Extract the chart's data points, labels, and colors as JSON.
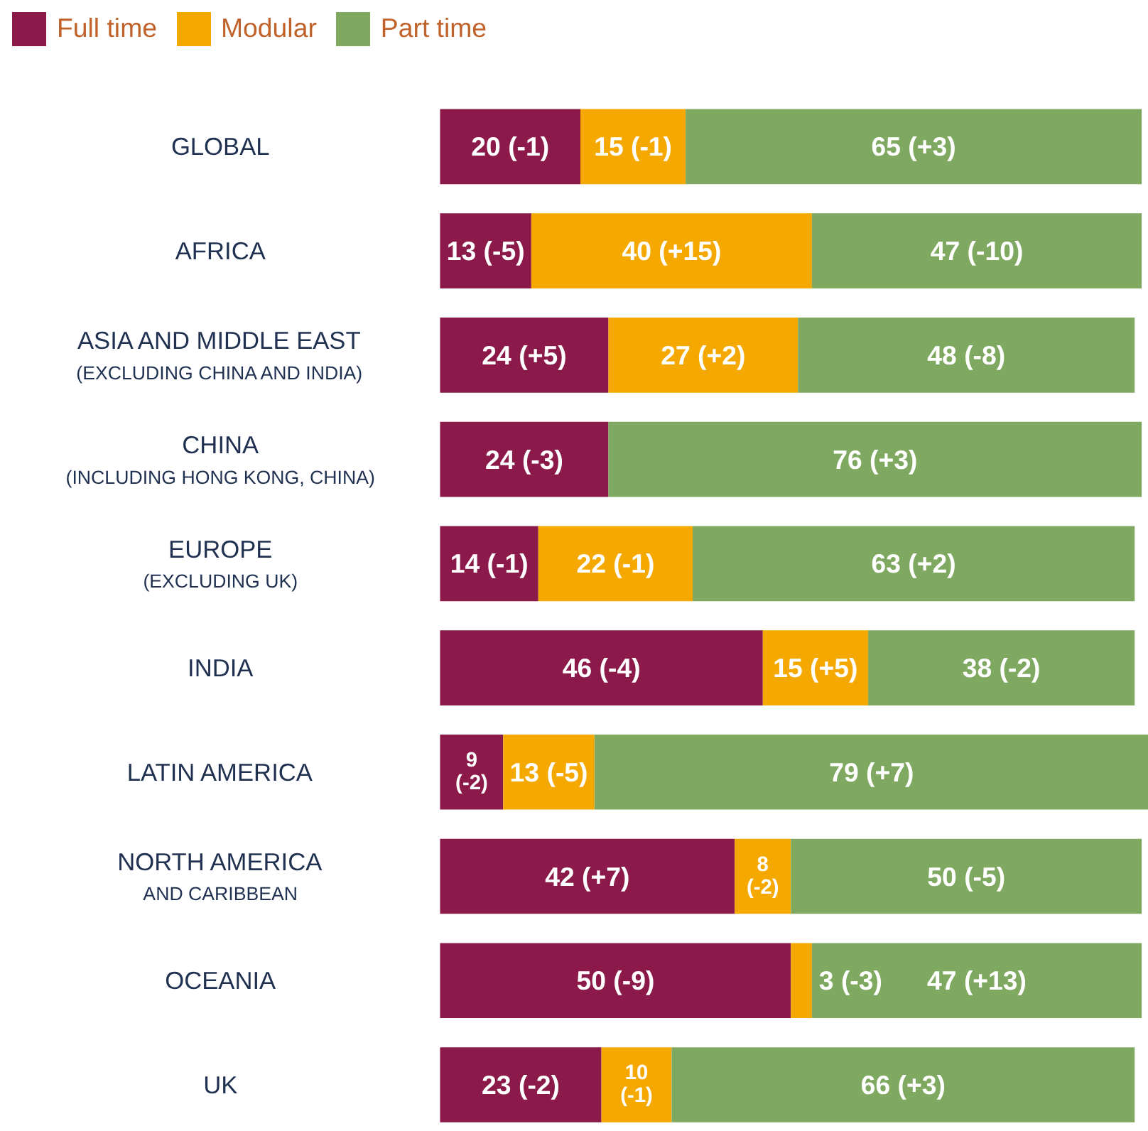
{
  "chart_data": {
    "type": "bar",
    "orientation": "horizontal",
    "stacked": true,
    "legend": "top left",
    "grid": false,
    "xlim": [
      0,
      101
    ],
    "categories": [
      "GLOBAL",
      "AFRICA",
      "ASIA AND MIDDLE EAST\n(EXCLUDING CHINA AND INDIA)",
      "CHINA\n(INCLUDING HONG KONG, CHINA)",
      "EUROPE\n(EXCLUDING UK)",
      "INDIA",
      "LATIN AMERICA",
      "NORTH AMERICA\nAND CARIBBEAN",
      "OCEANIA",
      "UK"
    ],
    "series": [
      {
        "name": "Full time",
        "color": "#8b1a4a",
        "values": [
          20,
          13,
          24,
          24,
          14,
          46,
          9,
          42,
          50,
          23
        ],
        "value_labels": [
          "20 (-1)",
          "13 (-5)",
          "24 (+5)",
          "24 (-3)",
          "14 (-1)",
          "46 (-4)",
          "9\n(-2)",
          "42 (+7)",
          "50 (-9)",
          "23 (-2)"
        ]
      },
      {
        "name": "Modular",
        "color": "#f5a800",
        "values": [
          15,
          40,
          27,
          null,
          22,
          15,
          13,
          8,
          3,
          10
        ],
        "value_labels": [
          "15 (-1)",
          "40 (+15)",
          "27 (+2)",
          null,
          "22 (-1)",
          "15 (+5)",
          "13 (-5)",
          "8\n(-2)",
          "3 (-3)",
          "10\n(-1)"
        ]
      },
      {
        "name": "Part time",
        "color": "#7fa860",
        "values": [
          65,
          47,
          48,
          76,
          63,
          38,
          79,
          50,
          47,
          66
        ],
        "value_labels": [
          "65 (+3)",
          "47 (-10)",
          "48 (-8)",
          "76 (+3)",
          "63 (+2)",
          "38 (-2)",
          "79 (+7)",
          "50 (-5)",
          "47 (+13)",
          "66 (+3)"
        ]
      }
    ]
  }
}
